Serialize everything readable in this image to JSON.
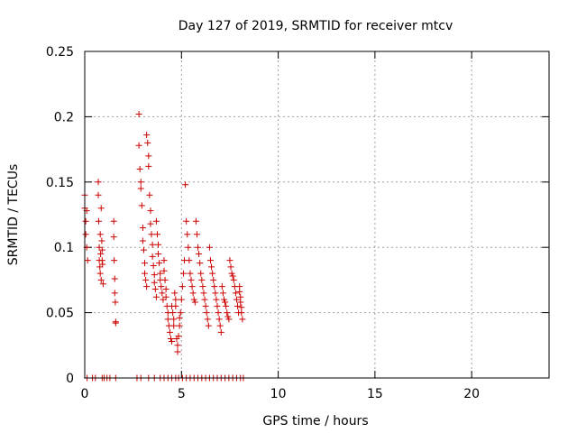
{
  "chart_data": {
    "type": "scatter",
    "title": "Day 127 of 2019, SRMTID for receiver mtcv",
    "xlabel": "GPS time / hours",
    "ylabel": "SRMTID / TECUs",
    "xlim": [
      0,
      24
    ],
    "ylim": [
      0,
      0.25
    ],
    "xticks": [
      0,
      5,
      10,
      15,
      20
    ],
    "xtick_labels": [
      "0",
      "5",
      "10",
      "15",
      "20"
    ],
    "yticks": [
      0,
      0.05,
      0.1,
      0.15,
      0.2,
      0.25
    ],
    "ytick_labels": [
      "0",
      "0.05",
      "0.1",
      "0.15",
      "0.2",
      "0.25"
    ],
    "grid": true,
    "marker": "+",
    "colors": {
      "points": "#cc0000",
      "grid": "#a0a0a0",
      "axes": "#000000"
    },
    "series": [
      {
        "x": [
          0.0,
          0.0,
          0.05,
          0.05,
          0.1,
          0.1,
          0.15,
          0.7,
          0.7,
          0.72,
          0.75,
          0.75,
          0.78,
          0.8,
          0.8,
          0.82,
          0.85,
          0.85,
          0.88,
          0.9,
          0.9,
          0.92,
          0.95,
          1.5,
          1.5,
          1.52,
          1.55,
          1.55,
          1.58,
          1.6,
          1.6,
          2.8,
          2.8,
          2.85,
          2.9,
          2.9,
          2.95,
          3.0,
          3.0,
          3.05,
          3.1,
          3.1,
          3.15,
          3.2,
          3.2,
          3.25,
          3.3,
          3.3,
          3.35,
          3.4,
          3.4,
          3.45,
          3.5,
          3.5,
          3.55,
          3.6,
          3.6,
          3.65,
          3.7,
          3.7,
          3.75,
          3.8,
          3.8,
          3.85,
          3.9,
          3.9,
          3.95,
          4.0,
          4.05,
          4.1,
          4.1,
          4.15,
          4.2,
          4.2,
          4.25,
          4.3,
          4.3,
          4.35,
          4.4,
          4.45,
          4.5,
          4.5,
          4.55,
          4.6,
          4.6,
          4.65,
          4.7,
          4.7,
          4.75,
          4.8,
          4.8,
          4.85,
          4.9,
          4.9,
          4.95,
          5.0,
          5.05,
          5.1,
          5.15,
          5.2,
          5.25,
          5.3,
          5.35,
          5.4,
          5.45,
          5.5,
          5.55,
          5.6,
          5.65,
          5.7,
          5.75,
          5.8,
          5.85,
          5.9,
          5.95,
          6.0,
          6.05,
          6.1,
          6.15,
          6.2,
          6.25,
          6.3,
          6.35,
          6.4,
          6.45,
          6.5,
          6.55,
          6.6,
          6.65,
          6.7,
          6.75,
          6.8,
          6.85,
          6.9,
          6.95,
          7.0,
          7.05,
          7.1,
          7.15,
          7.2,
          7.25,
          7.3,
          7.35,
          7.4,
          7.45,
          7.5,
          7.55,
          7.6,
          7.65,
          7.7,
          7.75,
          7.8,
          7.85,
          7.9,
          7.95,
          8.0,
          8.0,
          8.05,
          8.05,
          8.1,
          8.1,
          8.15,
          0.12,
          0.4,
          0.55,
          0.9,
          1.0,
          1.15,
          1.3,
          1.6,
          2.7,
          2.9,
          3.3,
          3.6,
          3.9,
          4.1,
          4.3,
          4.5,
          4.7,
          4.85,
          5.05,
          5.25,
          5.45,
          5.65,
          5.85,
          6.05,
          6.25,
          6.45,
          6.65,
          6.85,
          7.05,
          7.25,
          7.45,
          7.65,
          7.85,
          8.05,
          8.2
        ],
        "y": [
          0.14,
          0.13,
          0.12,
          0.11,
          0.128,
          0.1,
          0.09,
          0.15,
          0.14,
          0.12,
          0.1,
          0.09,
          0.085,
          0.11,
          0.08,
          0.095,
          0.075,
          0.13,
          0.105,
          0.09,
          0.098,
          0.087,
          0.072,
          0.12,
          0.108,
          0.09,
          0.076,
          0.065,
          0.058,
          0.043,
          0.042,
          0.202,
          0.178,
          0.16,
          0.15,
          0.145,
          0.132,
          0.115,
          0.105,
          0.098,
          0.088,
          0.08,
          0.075,
          0.07,
          0.186,
          0.18,
          0.17,
          0.162,
          0.14,
          0.128,
          0.118,
          0.11,
          0.102,
          0.093,
          0.086,
          0.079,
          0.073,
          0.068,
          0.062,
          0.12,
          0.11,
          0.102,
          0.095,
          0.088,
          0.08,
          0.075,
          0.07,
          0.065,
          0.06,
          0.09,
          0.082,
          0.075,
          0.068,
          0.062,
          0.055,
          0.05,
          0.045,
          0.04,
          0.035,
          0.03,
          0.028,
          0.055,
          0.05,
          0.045,
          0.04,
          0.065,
          0.06,
          0.055,
          0.03,
          0.025,
          0.02,
          0.032,
          0.04,
          0.046,
          0.05,
          0.06,
          0.07,
          0.08,
          0.09,
          0.148,
          0.12,
          0.11,
          0.1,
          0.09,
          0.08,
          0.075,
          0.07,
          0.065,
          0.06,
          0.058,
          0.12,
          0.11,
          0.1,
          0.095,
          0.088,
          0.08,
          0.075,
          0.07,
          0.065,
          0.06,
          0.055,
          0.05,
          0.045,
          0.04,
          0.1,
          0.09,
          0.085,
          0.08,
          0.075,
          0.07,
          0.065,
          0.06,
          0.055,
          0.05,
          0.045,
          0.04,
          0.035,
          0.07,
          0.065,
          0.06,
          0.058,
          0.055,
          0.05,
          0.047,
          0.045,
          0.09,
          0.085,
          0.08,
          0.078,
          0.075,
          0.07,
          0.065,
          0.06,
          0.055,
          0.05,
          0.07,
          0.066,
          0.062,
          0.058,
          0.054,
          0.05,
          0.045,
          0,
          0,
          0,
          0,
          0,
          0,
          0,
          0,
          0,
          0,
          0,
          0,
          0,
          0,
          0,
          0,
          0,
          0,
          0,
          0,
          0,
          0,
          0,
          0,
          0,
          0,
          0,
          0,
          0,
          0,
          0,
          0,
          0,
          0,
          0
        ]
      }
    ]
  }
}
